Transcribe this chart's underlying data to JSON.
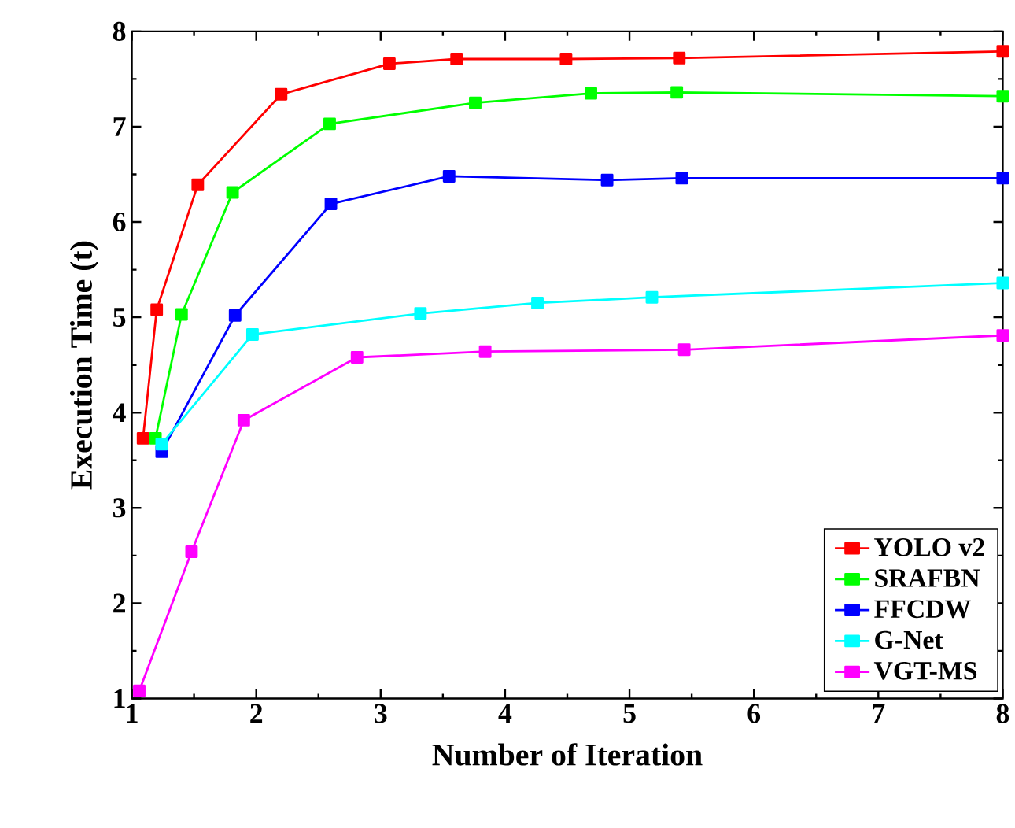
{
  "chart_data": {
    "type": "line",
    "xlabel": "Number of Iteration",
    "ylabel": "Execution Time (t)",
    "xlim": [
      1,
      8
    ],
    "ylim": [
      1,
      8
    ],
    "xticks": [
      1,
      2,
      3,
      4,
      5,
      6,
      7,
      8
    ],
    "yticks": [
      1,
      2,
      3,
      4,
      5,
      6,
      7,
      8
    ],
    "grid": false,
    "legend": "bottom right",
    "marker": "square",
    "line_style": "solid",
    "series": [
      {
        "name": "YOLO v2",
        "color": "#ff0000",
        "x": [
          1.09,
          1.2,
          1.53,
          2.2,
          3.07,
          3.61,
          4.49,
          5.4,
          8
        ],
        "values": [
          3.73,
          5.08,
          6.39,
          7.34,
          7.66,
          7.71,
          7.71,
          7.72,
          7.79
        ]
      },
      {
        "name": "SRAFBN",
        "color": "#00ff00",
        "x": [
          1.19,
          1.4,
          1.81,
          2.59,
          3.76,
          4.69,
          5.38,
          8
        ],
        "values": [
          3.73,
          5.03,
          6.31,
          7.03,
          7.25,
          7.35,
          7.36,
          7.32
        ]
      },
      {
        "name": "FFCDW",
        "color": "#0000ff",
        "x": [
          1.24,
          1.83,
          2.6,
          3.55,
          4.82,
          5.42,
          8
        ],
        "values": [
          3.59,
          5.02,
          6.19,
          6.48,
          6.44,
          6.46,
          6.46
        ]
      },
      {
        "name": "G-Net",
        "color": "#00ffff",
        "x": [
          1.24,
          1.97,
          3.32,
          4.26,
          5.18,
          8
        ],
        "values": [
          3.67,
          4.82,
          5.04,
          5.15,
          5.21,
          5.36
        ]
      },
      {
        "name": "VGT-MS",
        "color": "#ff00ff",
        "x": [
          1.06,
          1.48,
          1.9,
          2.81,
          3.84,
          5.44,
          8
        ],
        "values": [
          1.08,
          2.54,
          3.92,
          4.58,
          4.64,
          4.66,
          4.81
        ]
      }
    ]
  }
}
